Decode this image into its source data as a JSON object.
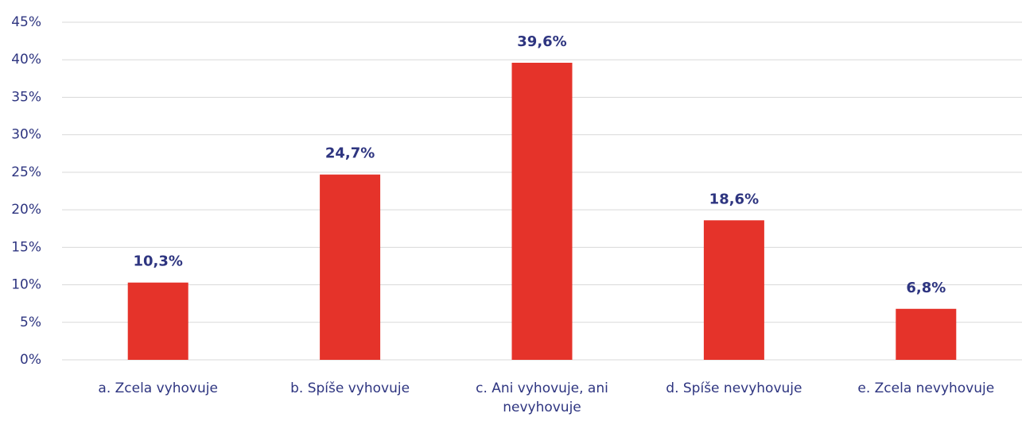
{
  "chart_data": {
    "type": "bar",
    "categories": [
      "a. Zcela vyhovuje",
      "b. Spíše vyhovuje",
      "c. Ani vyhovuje, ani nevyhovuje",
      "d. Spíše nevyhovuje",
      "e. Zcela nevyhovuje"
    ],
    "values": [
      10.3,
      24.7,
      39.6,
      18.6,
      6.8
    ],
    "value_labels": [
      "10,3%",
      "24,7%",
      "39,6%",
      "18,6%",
      "6,8%"
    ],
    "color": "#e5332a",
    "ylim": [
      0,
      45
    ],
    "yticks": [
      {
        "value": 0,
        "label": "0%"
      },
      {
        "value": 5,
        "label": "5%"
      },
      {
        "value": 10,
        "label": "10%"
      },
      {
        "value": 15,
        "label": "15%"
      },
      {
        "value": 20,
        "label": "20%"
      },
      {
        "value": 25,
        "label": "25%"
      },
      {
        "value": 30,
        "label": "30%"
      },
      {
        "value": 35,
        "label": "35%"
      },
      {
        "value": 40,
        "label": "40%"
      },
      {
        "value": 45,
        "label": "45%"
      }
    ],
    "grid": true
  }
}
